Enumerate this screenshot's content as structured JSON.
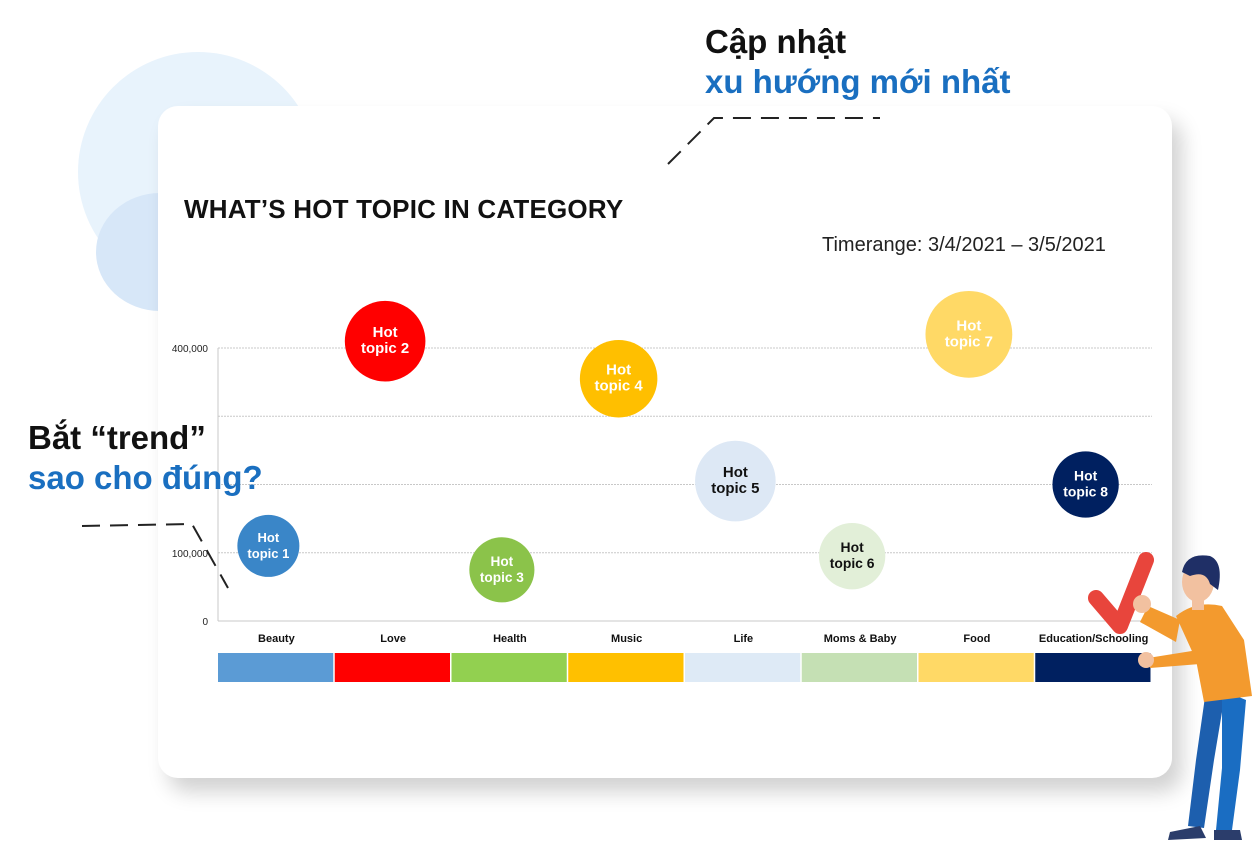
{
  "callouts": {
    "top": {
      "line1": "Cập nhật",
      "line2": "xu hướng mới nhất"
    },
    "left": {
      "line1": "Bắt “trend”",
      "line2": "sao cho đúng?"
    }
  },
  "chart_data": {
    "type": "scatter",
    "title": "WHAT’S HOT TOPIC IN CATEGORY",
    "subtitle": "Timerange: 3/4/2021 – 3/5/2021",
    "categories": [
      "Beauty",
      "Love",
      "Health",
      "Music",
      "Life",
      "Moms & Baby",
      "Food",
      "Education/Schooling"
    ],
    "category_colors": [
      "#5b9bd5",
      "#ff0000",
      "#92d050",
      "#ffc000",
      "#deeaf6",
      "#c5e0b4",
      "#ffd966",
      "#002060"
    ],
    "y_ticks": [
      {
        "value": 0,
        "label": "0"
      },
      {
        "value": 100000,
        "label": "100,000"
      },
      {
        "value": 200000,
        "label": ""
      },
      {
        "value": 300000,
        "label": ""
      },
      {
        "value": 400000,
        "label": "400,000"
      }
    ],
    "ylim": [
      0,
      400000
    ],
    "grid": true,
    "points": [
      {
        "category": "Beauty",
        "y": 110000,
        "label": "Hot topic 1",
        "color": "#3a86c8",
        "text_color": "#ffffff",
        "size": 1.0
      },
      {
        "category": "Love",
        "y": 410000,
        "label": "Hot topic 2",
        "color": "#ff0000",
        "text_color": "#ffffff",
        "size": 1.3
      },
      {
        "category": "Health",
        "y": 75000,
        "label": "Hot topic 3",
        "color": "#8bc34a",
        "text_color": "#ffffff",
        "size": 1.05
      },
      {
        "category": "Music",
        "y": 355000,
        "label": "Hot topic 4",
        "color": "#ffbf00",
        "text_color": "#ffffff",
        "size": 1.25
      },
      {
        "category": "Life",
        "y": 205000,
        "label": "Hot topic 5",
        "color": "#dde8f5",
        "text_color": "#111111",
        "size": 1.3
      },
      {
        "category": "Moms & Baby",
        "y": 95000,
        "label": "Hot topic 6",
        "color": "#e2efd8",
        "text_color": "#111111",
        "size": 1.07
      },
      {
        "category": "Food",
        "y": 420000,
        "label": "Hot topic 7",
        "color": "#ffd966",
        "text_color": "#ffffff",
        "size": 1.4
      },
      {
        "category": "Education/Schooling",
        "y": 200000,
        "label": "Hot topic 8",
        "color": "#002060",
        "text_color": "#ffffff",
        "size": 1.07
      }
    ]
  }
}
